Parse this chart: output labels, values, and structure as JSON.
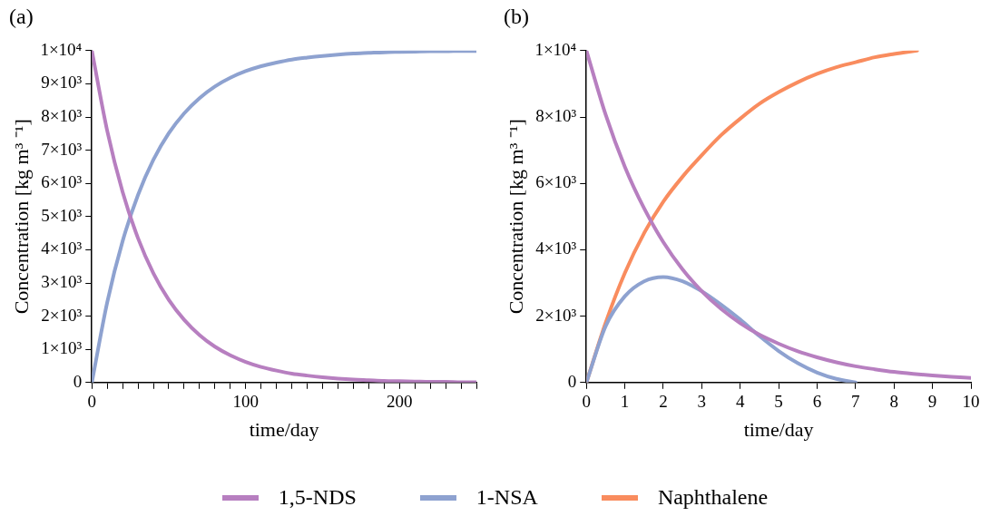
{
  "chart_data": [
    {
      "type": "line",
      "title": "(a)",
      "xlabel": "time/day",
      "ylabel": "Concentration [kg m³ ⁻¹]",
      "xlim": [
        0,
        250
      ],
      "ylim": [
        0,
        10000
      ],
      "xticks": [
        0,
        {
          "value": 10,
          "label": null
        },
        {
          "value": 20,
          "label": null
        },
        {
          "value": 30,
          "label": null
        },
        {
          "value": 40,
          "label": null
        },
        {
          "value": 50,
          "label": null
        },
        {
          "value": 60,
          "label": null
        },
        {
          "value": 70,
          "label": null
        },
        {
          "value": 80,
          "label": null
        },
        {
          "value": 90,
          "label": null
        },
        100,
        {
          "value": 110,
          "label": null
        },
        {
          "value": 120,
          "label": null
        },
        {
          "value": 130,
          "label": null
        },
        {
          "value": 140,
          "label": null
        },
        {
          "value": 150,
          "label": null
        },
        {
          "value": 160,
          "label": null
        },
        {
          "value": 170,
          "label": null
        },
        {
          "value": 180,
          "label": null
        },
        {
          "value": 190,
          "label": null
        },
        200,
        {
          "value": 210,
          "label": null
        },
        {
          "value": 220,
          "label": null
        },
        {
          "value": 230,
          "label": null
        },
        {
          "value": 240,
          "label": null
        },
        {
          "value": 250,
          "label": null
        }
      ],
      "yticks": [
        0,
        {
          "value": 1000,
          "label": "1×10³"
        },
        {
          "value": 2000,
          "label": "2×10³"
        },
        {
          "value": 3000,
          "label": "3×10³"
        },
        {
          "value": 4000,
          "label": "4×10³"
        },
        {
          "value": 5000,
          "label": "5×10³"
        },
        {
          "value": 6000,
          "label": "6×10³"
        },
        {
          "value": 7000,
          "label": "7×10³"
        },
        {
          "value": 8000,
          "label": "8×10³"
        },
        {
          "value": 9000,
          "label": "9×10³"
        },
        {
          "value": 10000,
          "label": "1×10⁴"
        }
      ],
      "grid": false,
      "marker": "none",
      "line_style": "solid",
      "legend": "bottom",
      "x": [
        0,
        10,
        20,
        30,
        40,
        50,
        60,
        70,
        80,
        90,
        100,
        110,
        120,
        130,
        140,
        150,
        160,
        170,
        180,
        190,
        200,
        210,
        220,
        230,
        240,
        250
      ],
      "series": [
        {
          "name": "1,5-NDS",
          "color": "#b77fc0",
          "values": [
            10000,
            7580,
            5740,
            4350,
            3290,
            2490,
            1890,
            1430,
            1080,
            820,
            620,
            470,
            360,
            270,
            210,
            160,
            120,
            90,
            70,
            50,
            40,
            30,
            20,
            20,
            10,
            10
          ]
        },
        {
          "name": "1-NSA",
          "color": "#8ea2d0",
          "values": [
            0,
            2420,
            4260,
            5650,
            6710,
            7510,
            8110,
            8570,
            8920,
            9180,
            9380,
            9530,
            9640,
            9730,
            9790,
            9840,
            9880,
            9910,
            9930,
            9950,
            9960,
            9970,
            9980,
            9980,
            9990,
            9990
          ]
        }
      ]
    },
    {
      "type": "line",
      "title": "(b)",
      "xlabel": "time/day",
      "ylabel": "Concentration [kg m³ ⁻¹]",
      "xlim": [
        0,
        10
      ],
      "ylim": [
        0,
        10000
      ],
      "xticks": [
        0,
        1,
        2,
        3,
        4,
        5,
        6,
        7,
        8,
        9,
        10
      ],
      "yticks": [
        0,
        {
          "value": 2000,
          "label": "2×10³"
        },
        {
          "value": 4000,
          "label": "4×10³"
        },
        {
          "value": 6000,
          "label": "6×10³"
        },
        {
          "value": 8000,
          "label": "8×10³"
        },
        {
          "value": 10000,
          "label": "1×10⁴"
        }
      ],
      "grid": false,
      "marker": "none",
      "line_style": "solid",
      "legend": "bottom",
      "series": [
        {
          "name": "1,5-NDS",
          "color": "#b77fc0",
          "x": [
            0,
            0.5,
            1,
            1.5,
            2,
            2.5,
            3,
            3.5,
            4,
            4.5,
            5,
            5.5,
            6,
            6.5,
            7,
            7.5,
            8,
            8.5,
            9,
            9.5,
            10
          ],
          "values": [
            10000,
            8070,
            6500,
            5250,
            4230,
            3410,
            2750,
            2220,
            1790,
            1440,
            1170,
            940,
            760,
            610,
            490,
            400,
            320,
            260,
            210,
            170,
            140
          ]
        },
        {
          "name": "1-NSA",
          "color": "#8ea2d0",
          "x": [
            0,
            0.5,
            1,
            1.5,
            2,
            2.5,
            3,
            3.5,
            4,
            4.5,
            5,
            5.5,
            6,
            6.5,
            7
          ],
          "values": [
            0,
            1700,
            2600,
            3050,
            3180,
            3050,
            2750,
            2350,
            1900,
            1400,
            950,
            580,
            300,
            110,
            0
          ]
        },
        {
          "name": "Naphthalene",
          "color": "#f98c5e",
          "x": [
            0,
            0.5,
            1,
            1.5,
            2,
            2.5,
            3,
            3.5,
            4,
            4.5,
            5,
            5.5,
            6,
            6.5,
            7,
            7.5,
            8,
            8.6
          ],
          "values": [
            0,
            1800,
            3300,
            4500,
            5450,
            6200,
            6850,
            7450,
            7950,
            8400,
            8750,
            9050,
            9300,
            9500,
            9650,
            9800,
            9900,
            10000
          ]
        }
      ]
    }
  ]
}
